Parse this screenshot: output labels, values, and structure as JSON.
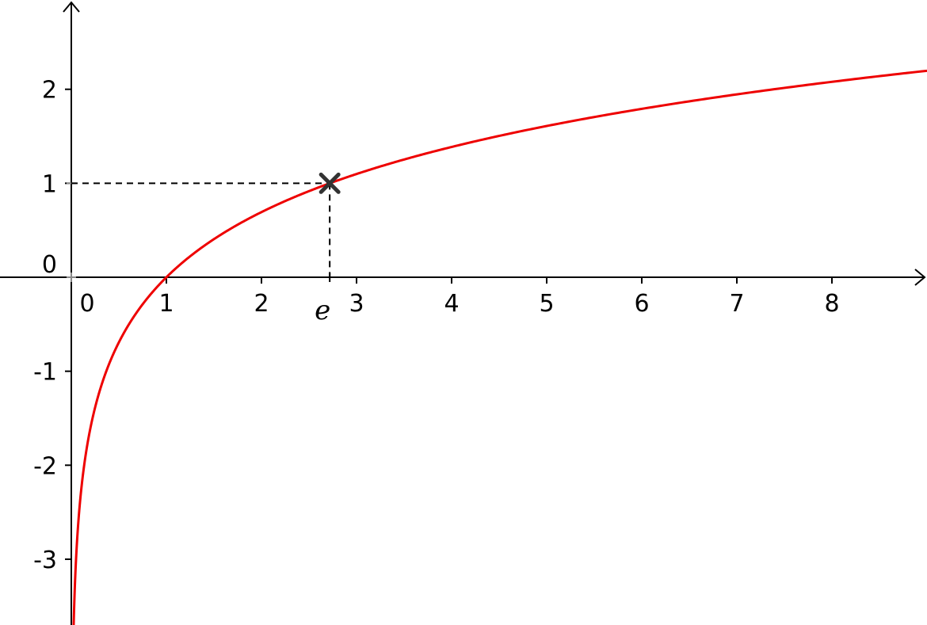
{
  "chart_data": {
    "type": "line",
    "function": "ln(x)",
    "xlim": [
      -0.75,
      9
    ],
    "ylim": [
      -3.7,
      2.95
    ],
    "x_ticks": [
      0,
      1,
      2,
      3,
      4,
      5,
      6,
      7,
      8
    ],
    "x_tick_labels": [
      "0",
      "1",
      "2",
      "3",
      "4",
      "5",
      "6",
      "7",
      "8"
    ],
    "y_ticks": [
      -3,
      -2,
      -1,
      1,
      2
    ],
    "y_tick_labels": [
      "-3",
      "-2",
      "-1",
      "1",
      "2"
    ],
    "origin_label": "0",
    "grid": false,
    "series": [
      {
        "color": "#ee0000",
        "x_min": 0.02,
        "x_max": 9
      }
    ],
    "marked_point": {
      "x": 2.718,
      "y": 1,
      "x_label": "e",
      "color": "#333333"
    }
  }
}
